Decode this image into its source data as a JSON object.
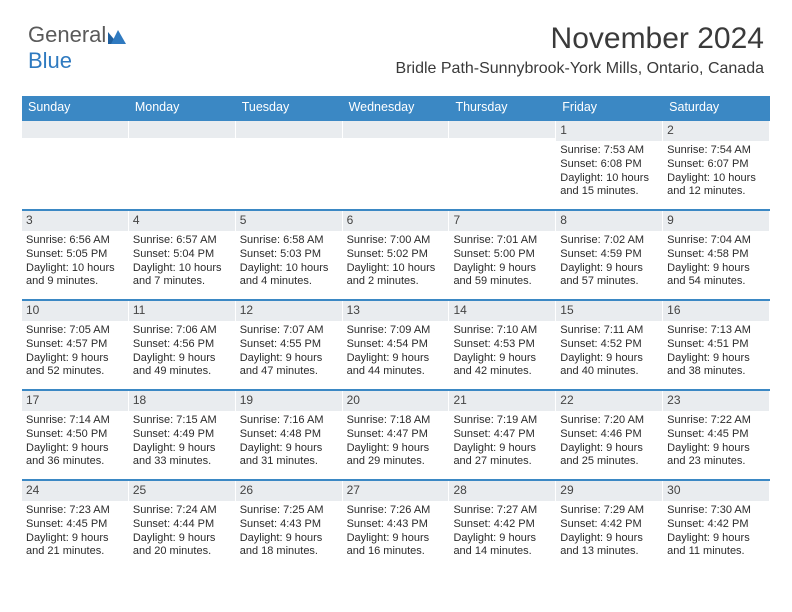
{
  "logo": {
    "text1": "General",
    "text2": "Blue"
  },
  "header": {
    "month_title": "November 2024",
    "location": "Bridle Path-Sunnybrook-York Mills, Ontario, Canada"
  },
  "colors": {
    "header_bar": "#3b88c4",
    "day_num_bg": "#e9ecef",
    "text": "#2b2b2b",
    "logo_grey": "#5a5a5a",
    "logo_blue": "#2f7ac0"
  },
  "day_names": [
    "Sunday",
    "Monday",
    "Tuesday",
    "Wednesday",
    "Thursday",
    "Friday",
    "Saturday"
  ],
  "weeks": [
    [
      {
        "n": "",
        "sr": "",
        "ss": "",
        "dl": ""
      },
      {
        "n": "",
        "sr": "",
        "ss": "",
        "dl": ""
      },
      {
        "n": "",
        "sr": "",
        "ss": "",
        "dl": ""
      },
      {
        "n": "",
        "sr": "",
        "ss": "",
        "dl": ""
      },
      {
        "n": "",
        "sr": "",
        "ss": "",
        "dl": ""
      },
      {
        "n": "1",
        "sr": "Sunrise: 7:53 AM",
        "ss": "Sunset: 6:08 PM",
        "dl": "Daylight: 10 hours and 15 minutes."
      },
      {
        "n": "2",
        "sr": "Sunrise: 7:54 AM",
        "ss": "Sunset: 6:07 PM",
        "dl": "Daylight: 10 hours and 12 minutes."
      }
    ],
    [
      {
        "n": "3",
        "sr": "Sunrise: 6:56 AM",
        "ss": "Sunset: 5:05 PM",
        "dl": "Daylight: 10 hours and 9 minutes."
      },
      {
        "n": "4",
        "sr": "Sunrise: 6:57 AM",
        "ss": "Sunset: 5:04 PM",
        "dl": "Daylight: 10 hours and 7 minutes."
      },
      {
        "n": "5",
        "sr": "Sunrise: 6:58 AM",
        "ss": "Sunset: 5:03 PM",
        "dl": "Daylight: 10 hours and 4 minutes."
      },
      {
        "n": "6",
        "sr": "Sunrise: 7:00 AM",
        "ss": "Sunset: 5:02 PM",
        "dl": "Daylight: 10 hours and 2 minutes."
      },
      {
        "n": "7",
        "sr": "Sunrise: 7:01 AM",
        "ss": "Sunset: 5:00 PM",
        "dl": "Daylight: 9 hours and 59 minutes."
      },
      {
        "n": "8",
        "sr": "Sunrise: 7:02 AM",
        "ss": "Sunset: 4:59 PM",
        "dl": "Daylight: 9 hours and 57 minutes."
      },
      {
        "n": "9",
        "sr": "Sunrise: 7:04 AM",
        "ss": "Sunset: 4:58 PM",
        "dl": "Daylight: 9 hours and 54 minutes."
      }
    ],
    [
      {
        "n": "10",
        "sr": "Sunrise: 7:05 AM",
        "ss": "Sunset: 4:57 PM",
        "dl": "Daylight: 9 hours and 52 minutes."
      },
      {
        "n": "11",
        "sr": "Sunrise: 7:06 AM",
        "ss": "Sunset: 4:56 PM",
        "dl": "Daylight: 9 hours and 49 minutes."
      },
      {
        "n": "12",
        "sr": "Sunrise: 7:07 AM",
        "ss": "Sunset: 4:55 PM",
        "dl": "Daylight: 9 hours and 47 minutes."
      },
      {
        "n": "13",
        "sr": "Sunrise: 7:09 AM",
        "ss": "Sunset: 4:54 PM",
        "dl": "Daylight: 9 hours and 44 minutes."
      },
      {
        "n": "14",
        "sr": "Sunrise: 7:10 AM",
        "ss": "Sunset: 4:53 PM",
        "dl": "Daylight: 9 hours and 42 minutes."
      },
      {
        "n": "15",
        "sr": "Sunrise: 7:11 AM",
        "ss": "Sunset: 4:52 PM",
        "dl": "Daylight: 9 hours and 40 minutes."
      },
      {
        "n": "16",
        "sr": "Sunrise: 7:13 AM",
        "ss": "Sunset: 4:51 PM",
        "dl": "Daylight: 9 hours and 38 minutes."
      }
    ],
    [
      {
        "n": "17",
        "sr": "Sunrise: 7:14 AM",
        "ss": "Sunset: 4:50 PM",
        "dl": "Daylight: 9 hours and 36 minutes."
      },
      {
        "n": "18",
        "sr": "Sunrise: 7:15 AM",
        "ss": "Sunset: 4:49 PM",
        "dl": "Daylight: 9 hours and 33 minutes."
      },
      {
        "n": "19",
        "sr": "Sunrise: 7:16 AM",
        "ss": "Sunset: 4:48 PM",
        "dl": "Daylight: 9 hours and 31 minutes."
      },
      {
        "n": "20",
        "sr": "Sunrise: 7:18 AM",
        "ss": "Sunset: 4:47 PM",
        "dl": "Daylight: 9 hours and 29 minutes."
      },
      {
        "n": "21",
        "sr": "Sunrise: 7:19 AM",
        "ss": "Sunset: 4:47 PM",
        "dl": "Daylight: 9 hours and 27 minutes."
      },
      {
        "n": "22",
        "sr": "Sunrise: 7:20 AM",
        "ss": "Sunset: 4:46 PM",
        "dl": "Daylight: 9 hours and 25 minutes."
      },
      {
        "n": "23",
        "sr": "Sunrise: 7:22 AM",
        "ss": "Sunset: 4:45 PM",
        "dl": "Daylight: 9 hours and 23 minutes."
      }
    ],
    [
      {
        "n": "24",
        "sr": "Sunrise: 7:23 AM",
        "ss": "Sunset: 4:45 PM",
        "dl": "Daylight: 9 hours and 21 minutes."
      },
      {
        "n": "25",
        "sr": "Sunrise: 7:24 AM",
        "ss": "Sunset: 4:44 PM",
        "dl": "Daylight: 9 hours and 20 minutes."
      },
      {
        "n": "26",
        "sr": "Sunrise: 7:25 AM",
        "ss": "Sunset: 4:43 PM",
        "dl": "Daylight: 9 hours and 18 minutes."
      },
      {
        "n": "27",
        "sr": "Sunrise: 7:26 AM",
        "ss": "Sunset: 4:43 PM",
        "dl": "Daylight: 9 hours and 16 minutes."
      },
      {
        "n": "28",
        "sr": "Sunrise: 7:27 AM",
        "ss": "Sunset: 4:42 PM",
        "dl": "Daylight: 9 hours and 14 minutes."
      },
      {
        "n": "29",
        "sr": "Sunrise: 7:29 AM",
        "ss": "Sunset: 4:42 PM",
        "dl": "Daylight: 9 hours and 13 minutes."
      },
      {
        "n": "30",
        "sr": "Sunrise: 7:30 AM",
        "ss": "Sunset: 4:42 PM",
        "dl": "Daylight: 9 hours and 11 minutes."
      }
    ]
  ]
}
